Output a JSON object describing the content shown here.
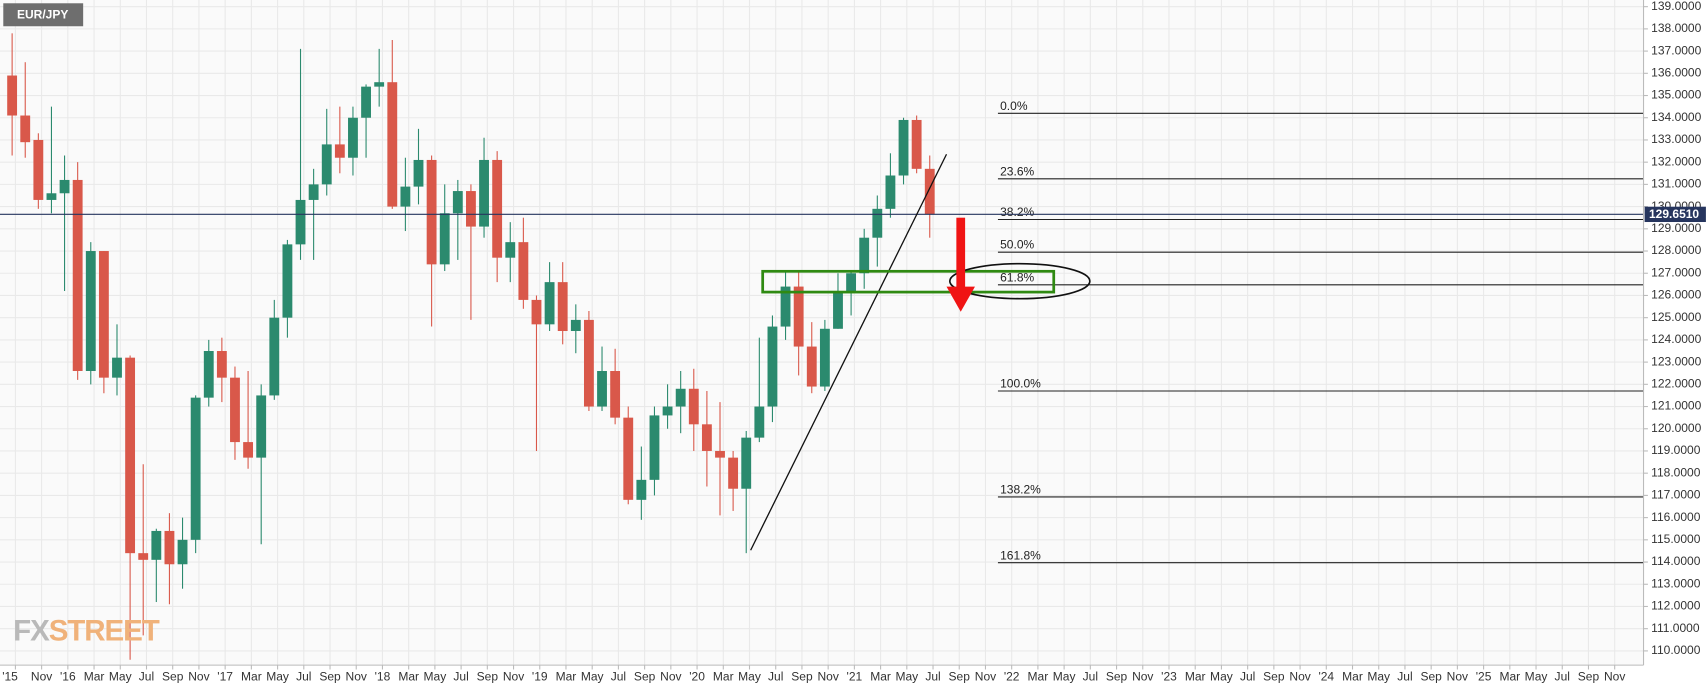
{
  "chart_data": {
    "type": "candlestick",
    "title": "EUR/JPY",
    "watermark": [
      "FX",
      "STREET"
    ],
    "categories": [
      "'15",
      null,
      "Nov",
      null,
      "'16",
      null,
      "Mar",
      null,
      "May",
      null,
      "Jul",
      null,
      "Sep",
      null,
      "Nov",
      null,
      "'17",
      null,
      "Mar",
      null,
      "May",
      null,
      "Jul",
      null,
      "Sep",
      null,
      "Nov",
      null,
      "'18",
      null,
      "Mar",
      null,
      "May",
      null,
      "Jul",
      null,
      "Sep",
      null,
      "Nov",
      null,
      "'19",
      null,
      "Mar",
      null,
      "May",
      null,
      "Jul",
      null,
      "Sep",
      null,
      "Nov",
      null,
      "'20",
      null,
      "Mar",
      null,
      "May",
      null,
      "Jul",
      null,
      "Sep",
      null,
      "Nov",
      null,
      "'21",
      null,
      "Mar",
      null,
      "May",
      null,
      "Jul",
      null,
      "Sep",
      null,
      "Nov",
      null,
      "'22",
      null,
      "Mar",
      null,
      "May",
      null,
      "Jul",
      null,
      "Sep",
      null,
      "Nov",
      null,
      "'23",
      null,
      "Mar",
      null,
      "May",
      null,
      "Jul",
      null,
      "Sep",
      null,
      "Nov",
      null,
      "'24",
      null,
      "Mar",
      null,
      "May",
      null,
      "Jul",
      null,
      "Sep",
      null,
      "Nov",
      null,
      "'25",
      null,
      "Mar",
      null,
      "May",
      null,
      "Jul",
      null,
      "Sep",
      null,
      "Nov"
    ],
    "open": [
      135.9,
      134.1,
      133.0,
      130.3,
      130.6,
      131.2,
      122.6,
      128.0,
      122.3,
      123.2,
      114.4,
      114.1,
      115.4,
      113.9,
      115.0,
      121.4,
      123.5,
      122.3,
      119.4,
      118.7,
      121.5,
      125.0,
      128.3,
      130.3,
      131.0,
      132.8,
      132.2,
      134.0,
      135.4,
      135.6,
      130.0,
      130.9,
      132.1,
      127.4,
      129.7,
      130.7,
      129.1,
      132.1,
      127.7,
      128.4,
      125.8,
      124.7,
      126.6,
      124.4,
      124.9,
      121.0,
      122.6,
      120.5,
      116.8,
      117.7,
      120.6,
      121.0,
      121.8,
      120.2,
      119.0,
      118.7,
      117.3,
      119.6,
      121.0,
      124.6,
      126.4,
      123.7,
      121.9,
      124.5,
      126.2,
      127.0,
      128.6,
      129.9,
      131.4,
      133.9,
      131.7,
      null,
      null,
      null,
      null,
      null,
      null,
      null,
      null,
      null,
      null,
      null,
      null,
      null,
      null,
      null,
      null,
      null,
      null,
      null,
      null,
      null,
      null,
      null,
      null,
      null,
      null,
      null,
      null,
      null,
      null,
      null,
      null,
      null,
      null,
      null,
      null,
      null,
      null,
      null,
      null,
      null,
      null,
      null,
      null,
      null,
      null,
      null,
      null,
      null,
      null,
      null,
      null
    ],
    "high": [
      137.8,
      136.5,
      133.3,
      134.5,
      132.3,
      132.0,
      128.4,
      128.0,
      124.7,
      123.3,
      118.4,
      115.5,
      116.2,
      116.0,
      121.5,
      124.0,
      124.1,
      122.8,
      122.6,
      122.0,
      125.8,
      128.5,
      137.1,
      131.7,
      134.4,
      134.5,
      134.5,
      135.5,
      137.1,
      137.5,
      132.2,
      133.5,
      132.3,
      131.0,
      131.2,
      131.0,
      133.1,
      132.5,
      129.3,
      129.5,
      126.0,
      127.5,
      127.5,
      125.6,
      125.3,
      123.7,
      123.6,
      121.0,
      119.2,
      121.0,
      122.0,
      122.6,
      122.7,
      121.7,
      121.2,
      119.0,
      119.9,
      124.1,
      125.1,
      127.1,
      127.1,
      124.8,
      124.9,
      127.0,
      127.1,
      129.0,
      130.5,
      132.4,
      134.0,
      134.1,
      132.3,
      null,
      null,
      null,
      null,
      null,
      null,
      null,
      null,
      null,
      null,
      null,
      null,
      null,
      null,
      null,
      null,
      null,
      null,
      null,
      null,
      null,
      null,
      null,
      null,
      null,
      null,
      null,
      null,
      null,
      null,
      null,
      null,
      null,
      null,
      null,
      null,
      null,
      null,
      null,
      null,
      null,
      null,
      null,
      null,
      null,
      null,
      null,
      null,
      null,
      null,
      null,
      null
    ],
    "low": [
      132.3,
      132.2,
      129.9,
      129.7,
      126.2,
      122.2,
      122.0,
      121.6,
      121.5,
      109.6,
      110.7,
      112.2,
      112.1,
      112.8,
      114.4,
      121.0,
      121.2,
      118.6,
      118.2,
      114.8,
      121.3,
      124.1,
      127.6,
      127.6,
      130.5,
      131.5,
      131.4,
      132.2,
      134.5,
      129.9,
      128.9,
      130.1,
      124.6,
      127.1,
      127.6,
      124.9,
      128.6,
      126.6,
      126.6,
      125.4,
      119.0,
      124.4,
      123.8,
      123.4,
      120.8,
      120.8,
      120.2,
      116.6,
      115.9,
      117.0,
      120.0,
      119.8,
      119.0,
      117.4,
      116.1,
      116.3,
      114.4,
      119.4,
      120.3,
      124.0,
      122.4,
      121.6,
      121.7,
      124.5,
      125.1,
      126.3,
      127.3,
      129.5,
      131.0,
      131.5,
      128.6,
      null,
      null,
      null,
      null,
      null,
      null,
      null,
      null,
      null,
      null,
      null,
      null,
      null,
      null,
      null,
      null,
      null,
      null,
      null,
      null,
      null,
      null,
      null,
      null,
      null,
      null,
      null,
      null,
      null,
      null,
      null,
      null,
      null,
      null,
      null,
      null,
      null,
      null,
      null,
      null,
      null,
      null,
      null,
      null,
      null,
      null,
      null,
      null,
      null,
      null,
      null,
      null
    ],
    "close": [
      134.1,
      132.9,
      130.3,
      130.6,
      131.2,
      122.6,
      128.0,
      122.3,
      123.2,
      114.4,
      114.1,
      115.4,
      113.9,
      115.0,
      121.4,
      123.5,
      122.3,
      119.4,
      118.7,
      121.5,
      125.0,
      128.3,
      130.3,
      131.0,
      132.8,
      132.2,
      134.0,
      135.4,
      135.6,
      130.0,
      130.9,
      132.1,
      127.4,
      129.7,
      130.7,
      129.1,
      132.1,
      127.7,
      128.4,
      125.8,
      124.7,
      126.6,
      124.4,
      124.9,
      121.0,
      122.6,
      120.5,
      116.8,
      117.7,
      120.6,
      121.0,
      121.8,
      120.2,
      119.0,
      118.7,
      117.3,
      119.6,
      121.0,
      124.6,
      126.4,
      123.7,
      121.9,
      124.5,
      126.2,
      127.0,
      128.6,
      129.9,
      131.4,
      133.9,
      131.7,
      129.65,
      null,
      null,
      null,
      null,
      null,
      null,
      null,
      null,
      null,
      null,
      null,
      null,
      null,
      null,
      null,
      null,
      null,
      null,
      null,
      null,
      null,
      null,
      null,
      null,
      null,
      null,
      null,
      null,
      null,
      null,
      null,
      null,
      null,
      null,
      null,
      null,
      null,
      null,
      null,
      null,
      null,
      null,
      null,
      null,
      null,
      null,
      null,
      null,
      null,
      null,
      null,
      null
    ],
    "up_color": "#2b8a6e",
    "down_color": "#d9584a",
    "ylim": [
      109.36,
      139.3
    ],
    "yticks": [
      {
        "value": 110,
        "label": "110.0000"
      },
      {
        "value": 111,
        "label": "111.0000"
      },
      {
        "value": 112,
        "label": "112.0000"
      },
      {
        "value": 113,
        "label": "113.0000"
      },
      {
        "value": 114,
        "label": "114.0000"
      },
      {
        "value": 115,
        "label": "115.0000"
      },
      {
        "value": 116,
        "label": "116.0000"
      },
      {
        "value": 117,
        "label": "117.0000"
      },
      {
        "value": 118,
        "label": "118.0000"
      },
      {
        "value": 119,
        "label": "119.0000"
      },
      {
        "value": 120,
        "label": "120.0000"
      },
      {
        "value": 121,
        "label": "121.0000"
      },
      {
        "value": 122,
        "label": "122.0000"
      },
      {
        "value": 123,
        "label": "123.0000"
      },
      {
        "value": 124,
        "label": "124.0000"
      },
      {
        "value": 125,
        "label": "125.0000"
      },
      {
        "value": 126,
        "label": "126.0000"
      },
      {
        "value": 127,
        "label": "127.0000"
      },
      {
        "value": 128,
        "label": "128.0000"
      },
      {
        "value": 129,
        "label": "129.0000"
      },
      {
        "value": 130,
        "label": "130.0000"
      },
      {
        "value": 131,
        "label": "131.0000"
      },
      {
        "value": 132,
        "label": "132.0000"
      },
      {
        "value": 133,
        "label": "133.0000"
      },
      {
        "value": 134,
        "label": "134.0000"
      },
      {
        "value": 135,
        "label": "135.0000"
      },
      {
        "value": 136,
        "label": "136.0000"
      },
      {
        "value": 137,
        "label": "137.0000"
      },
      {
        "value": 138,
        "label": "138.0000"
      },
      {
        "value": 139,
        "label": "139.0000"
      }
    ],
    "grid": true,
    "last_price": {
      "value": 129.651,
      "label": "129.6510",
      "color": "#26355e"
    },
    "fib_levels": [
      {
        "label": "0.0%",
        "price": 134.2
      },
      {
        "label": "23.6%",
        "price": 131.25
      },
      {
        "label": "38.2%",
        "price": 129.42
      },
      {
        "label": "50.0%",
        "price": 127.95
      },
      {
        "label": "61.8%",
        "price": 126.48
      },
      {
        "label": "100.0%",
        "price": 121.7
      },
      {
        "label": "138.2%",
        "price": 116.93
      },
      {
        "label": "161.8%",
        "price": 113.97
      }
    ]
  }
}
